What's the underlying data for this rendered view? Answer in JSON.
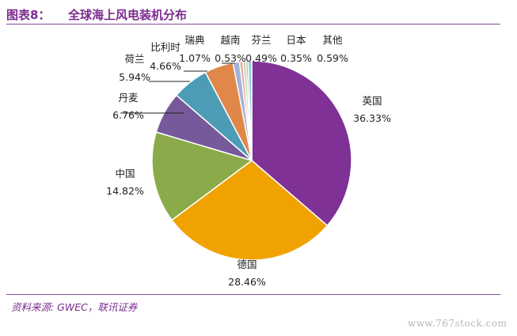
{
  "header": {
    "figure_label": "图表8：",
    "title": "全球海上风电装机分布"
  },
  "source_text": "资料来源: GWEC，联讯证券",
  "watermark_text": "www.767stock.com",
  "chart_data": {
    "type": "pie",
    "start_angle_deg": 0,
    "direction": "clockwise",
    "categories": [
      "英国",
      "德国",
      "中国",
      "丹麦",
      "荷兰",
      "比利时",
      "瑞典",
      "越南",
      "芬兰",
      "日本",
      "其他"
    ],
    "values": [
      36.33,
      28.46,
      14.82,
      6.76,
      5.94,
      4.66,
      1.07,
      0.53,
      0.49,
      0.35,
      0.59
    ],
    "value_labels": [
      "36.33%",
      "28.46%",
      "14.82%",
      "6.76%",
      "5.94%",
      "4.66%",
      "1.07%",
      "0.53%",
      "0.49%",
      "0.35%",
      "0.59%"
    ],
    "colors": [
      "#7f3196",
      "#f0a300",
      "#8bab4b",
      "#76599a",
      "#4c9cb6",
      "#e0874a",
      "#a3b3d9",
      "#e8a3a3",
      "#c3d89b",
      "#b2a5c9",
      "#8dc9d6"
    ]
  }
}
